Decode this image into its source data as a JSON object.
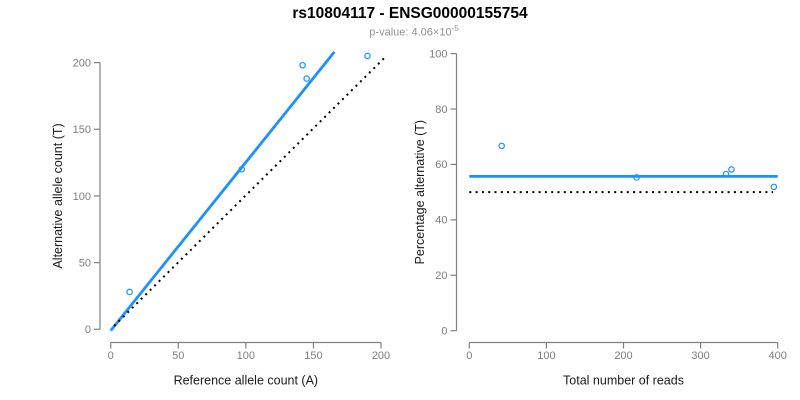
{
  "header": {
    "title": "rs10804117 - ENSG00000155754",
    "subtitle_base": "p-value: 4.06×10",
    "subtitle_exponent": "-5"
  },
  "colors": {
    "accent_blue": "#1E90FF",
    "reference_black": "#000000",
    "axis_gray": "#808080",
    "tick_label_gray": "#7d7d7d",
    "axis_label_dark": "#1a1a1a",
    "subtitle_gray": "#919191",
    "background": "#ffffff"
  },
  "chart_data": [
    {
      "type": "scatter",
      "name": "allele-counts-scatter",
      "xlabel": "Reference allele count (A)",
      "ylabel": "Alternative allele count (T)",
      "xlim": [
        0,
        200
      ],
      "ylim": [
        0,
        200
      ],
      "xticks": [
        0,
        50,
        100,
        150,
        200
      ],
      "yticks": [
        0,
        50,
        100,
        150,
        200
      ],
      "grid": false,
      "points": [
        [
          14,
          28
        ],
        [
          97,
          120
        ],
        [
          142,
          198
        ],
        [
          145,
          188
        ],
        [
          190,
          205
        ]
      ],
      "lines": [
        {
          "name": "fitted-proportion-line",
          "style": "solid",
          "color": "#1E90FF",
          "width": 2.8,
          "from": [
            0,
            -1
          ],
          "to": [
            165.5,
            208
          ]
        },
        {
          "name": "identity-line",
          "style": "dotted",
          "color": "#000000",
          "width": 2,
          "from": [
            2.5,
            2.5
          ],
          "to": [
            204,
            205
          ]
        }
      ]
    },
    {
      "type": "scatter",
      "name": "percentage-vs-reads-scatter",
      "xlabel": "Total number of reads",
      "ylabel": "Percentage alternative (T)",
      "xlim": [
        0,
        400
      ],
      "ylim": [
        0,
        100
      ],
      "xticks": [
        0,
        100,
        200,
        300,
        400
      ],
      "yticks": [
        0,
        20,
        40,
        60,
        80,
        100
      ],
      "grid": false,
      "points": [
        [
          42,
          66.7
        ],
        [
          217,
          55.3
        ],
        [
          333,
          56.5
        ],
        [
          340,
          58.2
        ],
        [
          395,
          51.9
        ]
      ],
      "lines": [
        {
          "name": "mean-percentage-line",
          "style": "solid",
          "color": "#1E90FF",
          "width": 2.8,
          "from": [
            0,
            55.7
          ],
          "to": [
            400,
            55.7
          ]
        },
        {
          "name": "expected-50-line",
          "style": "dotted",
          "color": "#000000",
          "width": 2,
          "from": [
            0,
            50
          ],
          "to": [
            394,
            50
          ]
        }
      ]
    }
  ]
}
